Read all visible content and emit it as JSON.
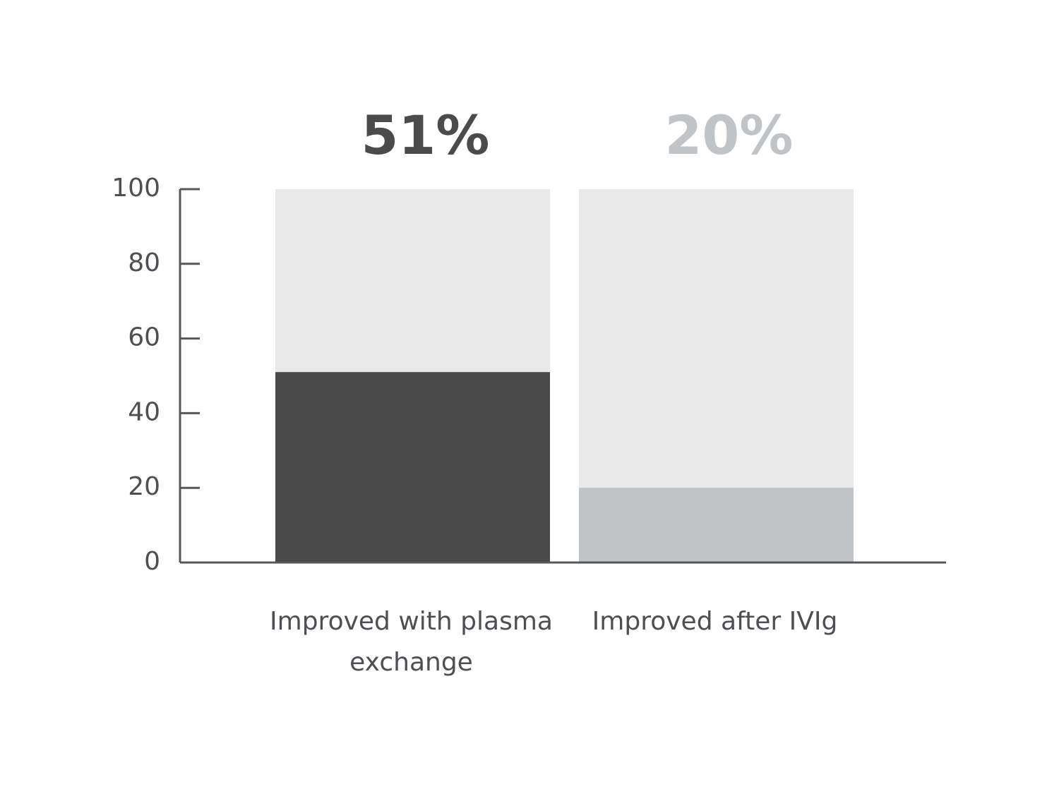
{
  "chart_data": {
    "type": "bar",
    "categories": [
      "Improved with plasma exchange",
      "Improved after IVIg"
    ],
    "values": [
      51,
      20
    ],
    "value_labels": [
      "51%",
      "20%"
    ],
    "colors": [
      "#4b4b4b",
      "#c1c4c6"
    ],
    "track_color": "#e8e8e8",
    "ylim": [
      0,
      100
    ],
    "yticks": [
      0,
      20,
      40,
      60,
      80,
      100
    ]
  }
}
